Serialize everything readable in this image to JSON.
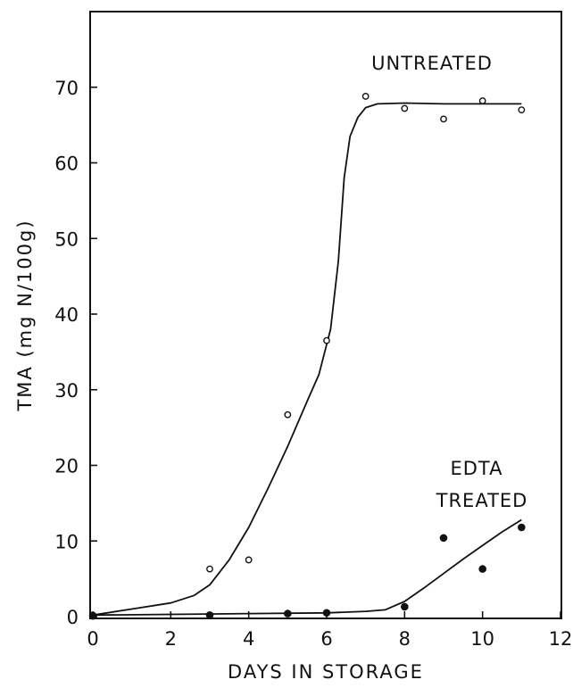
{
  "chart_data": {
    "type": "scatter",
    "xlabel": "DAYS IN STORAGE",
    "ylabel": "TMA (mg N/100g)",
    "xlim": [
      0,
      12
    ],
    "ylim": [
      0,
      80
    ],
    "x_ticks": [
      0,
      2,
      4,
      6,
      8,
      10,
      12
    ],
    "y_ticks": [
      0,
      10,
      20,
      30,
      40,
      50,
      60,
      70
    ],
    "grid": false,
    "series": [
      {
        "name": "UNTREATED",
        "marker": "open-circle",
        "points": [
          [
            0,
            0.2
          ],
          [
            3,
            6.3
          ],
          [
            4,
            7.5
          ],
          [
            5,
            26.7
          ],
          [
            6,
            36.5
          ],
          [
            7,
            68.8
          ],
          [
            8,
            67.2
          ],
          [
            9,
            65.8
          ],
          [
            10,
            68.2
          ],
          [
            11,
            67.0
          ]
        ],
        "fit_curve": [
          [
            0,
            0.2
          ],
          [
            1,
            1.0
          ],
          [
            2,
            1.8
          ],
          [
            2.6,
            2.8
          ],
          [
            3,
            4.2
          ],
          [
            3.5,
            7.5
          ],
          [
            4,
            11.8
          ],
          [
            4.5,
            17.0
          ],
          [
            5,
            22.5
          ],
          [
            5.5,
            28.5
          ],
          [
            5.8,
            32.0
          ],
          [
            6.1,
            38.0
          ],
          [
            6.3,
            47.0
          ],
          [
            6.45,
            58.0
          ],
          [
            6.6,
            63.5
          ],
          [
            6.8,
            66.0
          ],
          [
            7.0,
            67.3
          ],
          [
            7.3,
            67.8
          ],
          [
            8,
            67.9
          ],
          [
            9,
            67.8
          ],
          [
            10,
            67.8
          ],
          [
            11,
            67.8
          ]
        ]
      },
      {
        "name": "EDTA TREATED",
        "marker": "filled-circle",
        "points": [
          [
            0,
            0.1
          ],
          [
            3,
            0.2
          ],
          [
            5,
            0.4
          ],
          [
            6,
            0.5
          ],
          [
            8,
            1.3
          ],
          [
            9,
            10.4
          ],
          [
            10,
            6.3
          ],
          [
            11,
            11.8
          ]
        ],
        "fit_curve": [
          [
            0,
            0.2
          ],
          [
            2,
            0.3
          ],
          [
            4,
            0.4
          ],
          [
            6,
            0.5
          ],
          [
            7,
            0.7
          ],
          [
            7.5,
            0.9
          ],
          [
            8,
            2.0
          ],
          [
            8.5,
            3.8
          ],
          [
            9,
            5.7
          ],
          [
            9.5,
            7.6
          ],
          [
            10,
            9.4
          ],
          [
            10.5,
            11.2
          ],
          [
            11,
            12.8
          ]
        ]
      }
    ],
    "annotations": [
      {
        "lines": [
          "UNTREATED"
        ]
      },
      {
        "lines": [
          "EDTA",
          "TREATED"
        ]
      }
    ]
  }
}
